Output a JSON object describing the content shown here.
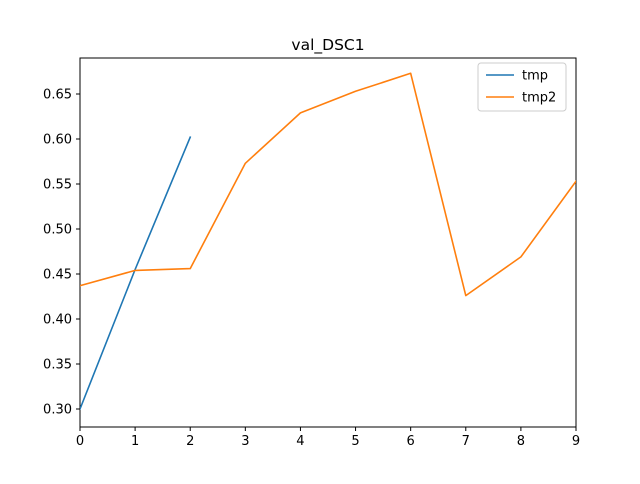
{
  "chart_data": {
    "type": "line",
    "title": "val_DSC1",
    "xlabel": "",
    "ylabel": "",
    "xlim": [
      0,
      9
    ],
    "ylim": [
      0.28,
      0.69
    ],
    "xticks": [
      0,
      1,
      2,
      3,
      4,
      5,
      6,
      7,
      8,
      9
    ],
    "xtick_labels": [
      "0",
      "1",
      "2",
      "3",
      "4",
      "5",
      "6",
      "7",
      "8",
      "9"
    ],
    "yticks": [
      0.3,
      0.35,
      0.4,
      0.45,
      0.5,
      0.55,
      0.6,
      0.65
    ],
    "ytick_labels": [
      "0.30",
      "0.35",
      "0.40",
      "0.45",
      "0.50",
      "0.55",
      "0.60",
      "0.65"
    ],
    "grid": false,
    "legend_position": "top-right",
    "series": [
      {
        "name": "tmp",
        "color": "#1f77b4",
        "x": [
          0,
          1,
          2
        ],
        "y": [
          0.3,
          0.455,
          0.602
        ]
      },
      {
        "name": "tmp2",
        "color": "#ff7f0e",
        "x": [
          0,
          1,
          2,
          3,
          4,
          5,
          6,
          7,
          8,
          9
        ],
        "y": [
          0.437,
          0.454,
          0.456,
          0.573,
          0.629,
          0.653,
          0.673,
          0.426,
          0.469,
          0.553
        ]
      }
    ]
  }
}
